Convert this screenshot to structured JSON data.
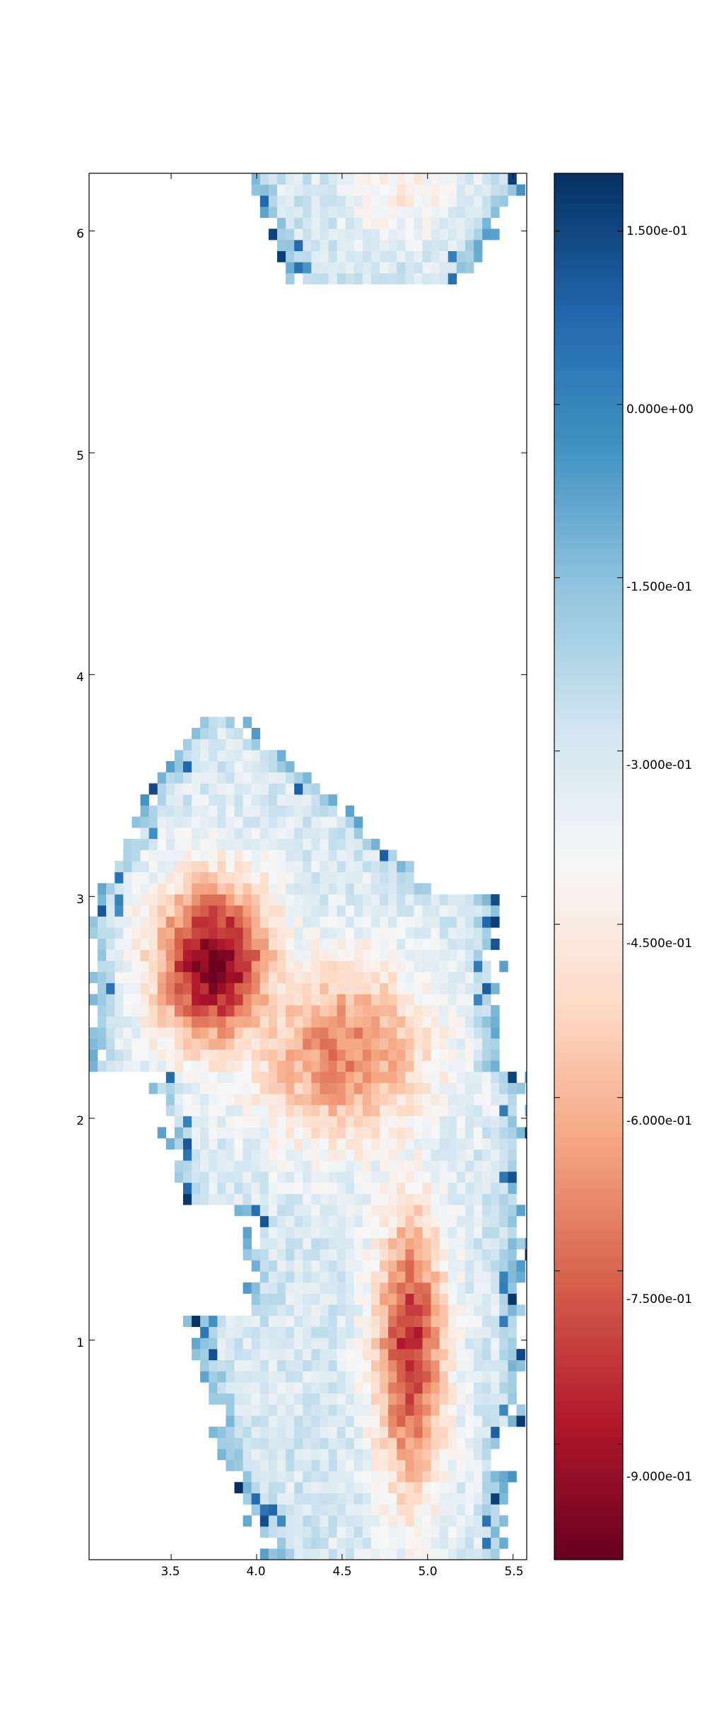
{
  "chart_data": {
    "type": "heatmap",
    "title": "",
    "xlabel": "",
    "ylabel": "",
    "xlim": [
      3.02,
      5.58
    ],
    "ylim": [
      0.01,
      6.26
    ],
    "xticks": [
      "3.5",
      "4.0",
      "4.5",
      "5.0",
      "5.5"
    ],
    "yticks": [
      "1",
      "2",
      "3",
      "4",
      "5",
      "6"
    ],
    "cell_size": [
      0.05,
      0.05
    ],
    "grid": false,
    "colormap": "RdBu",
    "colormap_colors": [
      "#67001f",
      "#b2182b",
      "#d6604d",
      "#f4a582",
      "#fddbc7",
      "#f7f7f7",
      "#d1e5f0",
      "#92c5de",
      "#4393c3",
      "#2166ac",
      "#053061"
    ],
    "colorbar": {
      "range": [
        -1.0,
        0.2
      ],
      "ticks": [
        "1.500e-01",
        "0.000e+00",
        "-1.500e-01",
        "-3.000e-01",
        "-4.500e-01",
        "-6.000e-01",
        "-7.500e-01",
        "-9.000e-01"
      ]
    },
    "regions": [
      {
        "kind": "hotspot",
        "x": 3.75,
        "y": 2.7,
        "sx": 0.3,
        "sy": 0.32,
        "value": -0.97
      },
      {
        "kind": "hotspot",
        "x": 4.9,
        "y": 0.95,
        "sx": 0.18,
        "sy": 0.55,
        "value": -0.85
      },
      {
        "kind": "hotspot",
        "x": 4.5,
        "y": 2.3,
        "sx": 0.45,
        "sy": 0.35,
        "value": -0.7
      },
      {
        "kind": "hotspot",
        "x": 4.85,
        "y": 6.15,
        "sx": 0.25,
        "sy": 0.15,
        "value": -0.45
      },
      {
        "kind": "background",
        "value": -0.3
      }
    ]
  }
}
